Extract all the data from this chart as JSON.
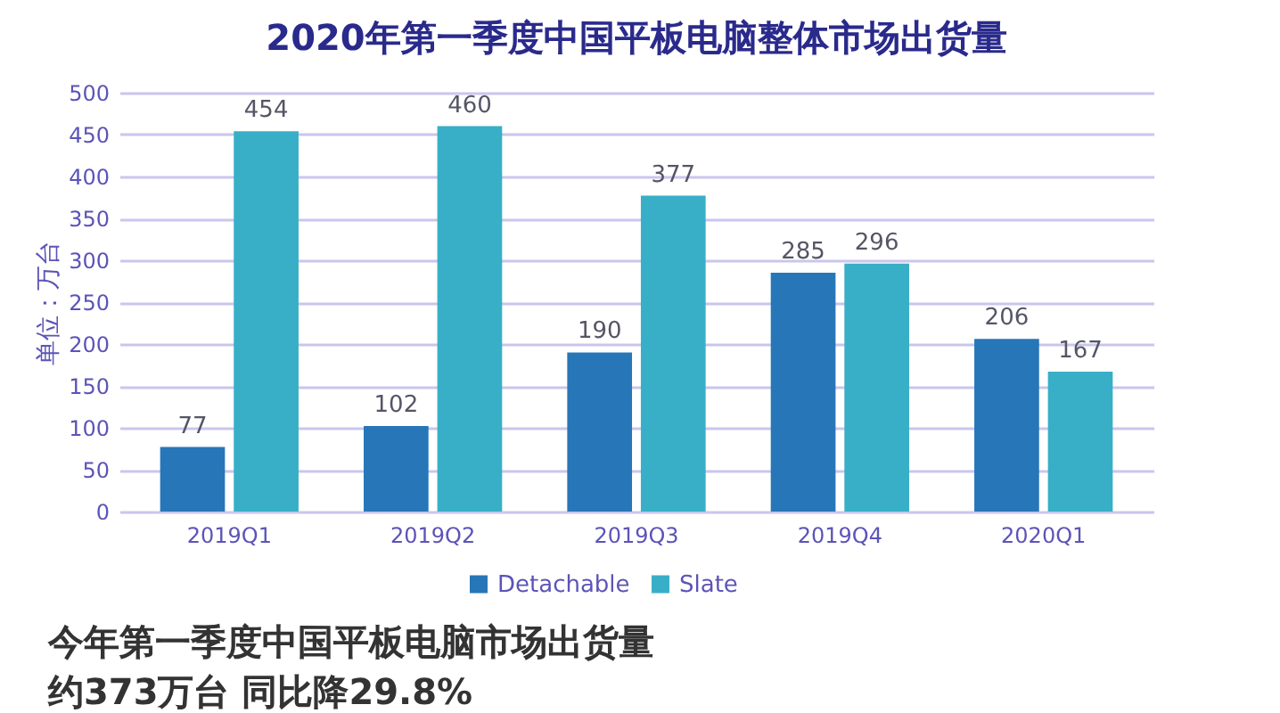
{
  "chart_data": {
    "type": "bar",
    "title": "2020年第一季度中国平板电脑整体市场出货量",
    "ylabel": "单位：万台",
    "categories": [
      "2019Q1",
      "2019Q2",
      "2019Q3",
      "2019Q4",
      "2020Q1"
    ],
    "series": [
      {
        "name": "Detachable",
        "color": "#2776b8",
        "values": [
          77,
          102,
          190,
          285,
          206
        ]
      },
      {
        "name": "Slate",
        "color": "#38afc6",
        "values": [
          454,
          460,
          377,
          296,
          167
        ]
      }
    ],
    "ylim": [
      0,
      500
    ],
    "yticks": [
      0,
      50,
      100,
      150,
      200,
      250,
      300,
      350,
      400,
      450,
      500
    ],
    "grid": "y",
    "legend": "bottom",
    "data_labels": true,
    "annotations": [
      "今年第一季度中国平板电脑市场出货量",
      "约373万台 同比降29.8%"
    ]
  }
}
